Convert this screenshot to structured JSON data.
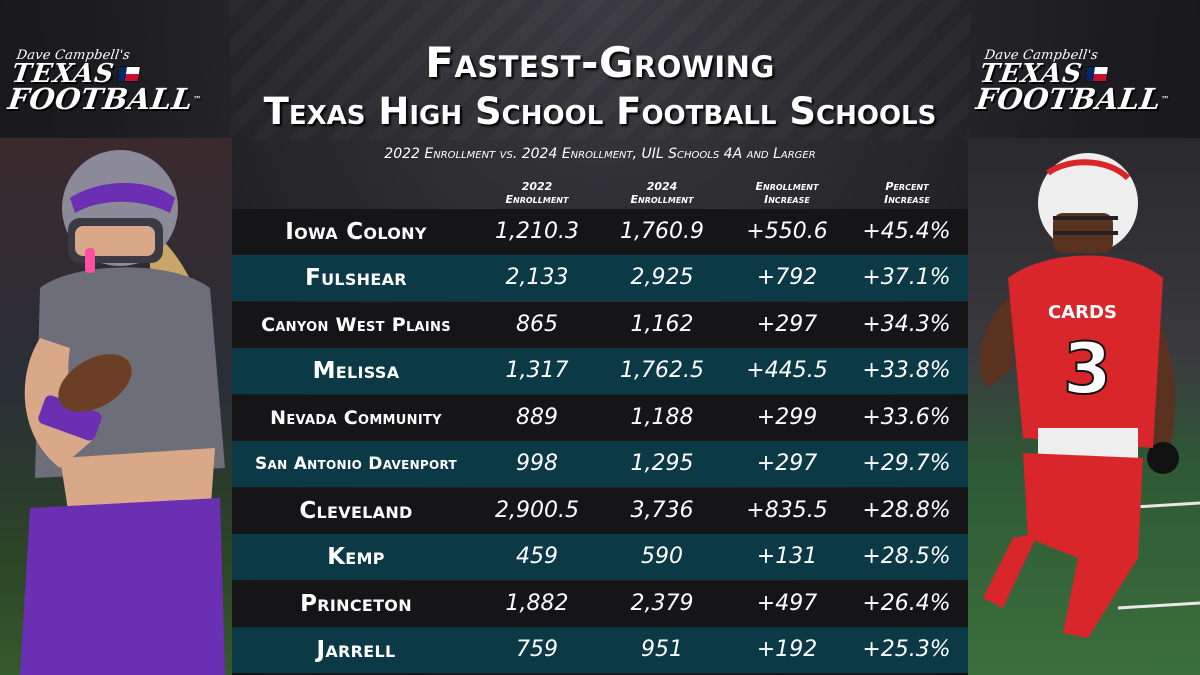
{
  "logo": {
    "script": "Dave Campbell's",
    "line1": "TEXAS",
    "line2": "FOOTBALL",
    "tm": "™"
  },
  "title": {
    "line1": "Fastest-Growing",
    "line2": "Texas High School Football Schools",
    "subtitle": "2022 Enrollment vs. 2024 Enrollment, UIL Schools 4A and Larger"
  },
  "columns": [
    {
      "line1": "2022",
      "line2": "Enrollment"
    },
    {
      "line1": "2024",
      "line2": "Enrollment"
    },
    {
      "line1": "Enrollment",
      "line2": "Increase"
    },
    {
      "line1": "Percent",
      "line2": "Increase"
    }
  ],
  "rows": [
    {
      "school": "Iowa Colony",
      "e2022": "1,210.3",
      "e2024": "1,760.9",
      "increase": "+550.6",
      "pct": "+45.4%"
    },
    {
      "school": "Fulshear",
      "e2022": "2,133",
      "e2024": "2,925",
      "increase": "+792",
      "pct": "+37.1%"
    },
    {
      "school": "Canyon West Plains",
      "e2022": "865",
      "e2024": "1,162",
      "increase": "+297",
      "pct": "+34.3%"
    },
    {
      "school": "Melissa",
      "e2022": "1,317",
      "e2024": "1,762.5",
      "increase": "+445.5",
      "pct": "+33.8%"
    },
    {
      "school": "Nevada Community",
      "e2022": "889",
      "e2024": "1,188",
      "increase": "+299",
      "pct": "+33.6%"
    },
    {
      "school": "San Antonio Davenport",
      "e2022": "998",
      "e2024": "1,295",
      "increase": "+297",
      "pct": "+29.7%"
    },
    {
      "school": "Cleveland",
      "e2022": "2,900.5",
      "e2024": "3,736",
      "increase": "+835.5",
      "pct": "+28.8%"
    },
    {
      "school": "Kemp",
      "e2022": "459",
      "e2024": "590",
      "increase": "+131",
      "pct": "+28.5%"
    },
    {
      "school": "Princeton",
      "e2022": "1,882",
      "e2024": "2,379",
      "increase": "+497",
      "pct": "+26.4%"
    },
    {
      "school": "Jarrell",
      "e2022": "759",
      "e2024": "951",
      "increase": "+192",
      "pct": "+25.3%"
    }
  ],
  "players": {
    "right_jersey_text": "CARDS",
    "right_jersey_number": "3"
  },
  "colors": {
    "row_dark": "#151517",
    "row_teal": "#0b3945",
    "left_uniform": "#6b2fb3",
    "right_uniform": "#d9262a"
  }
}
